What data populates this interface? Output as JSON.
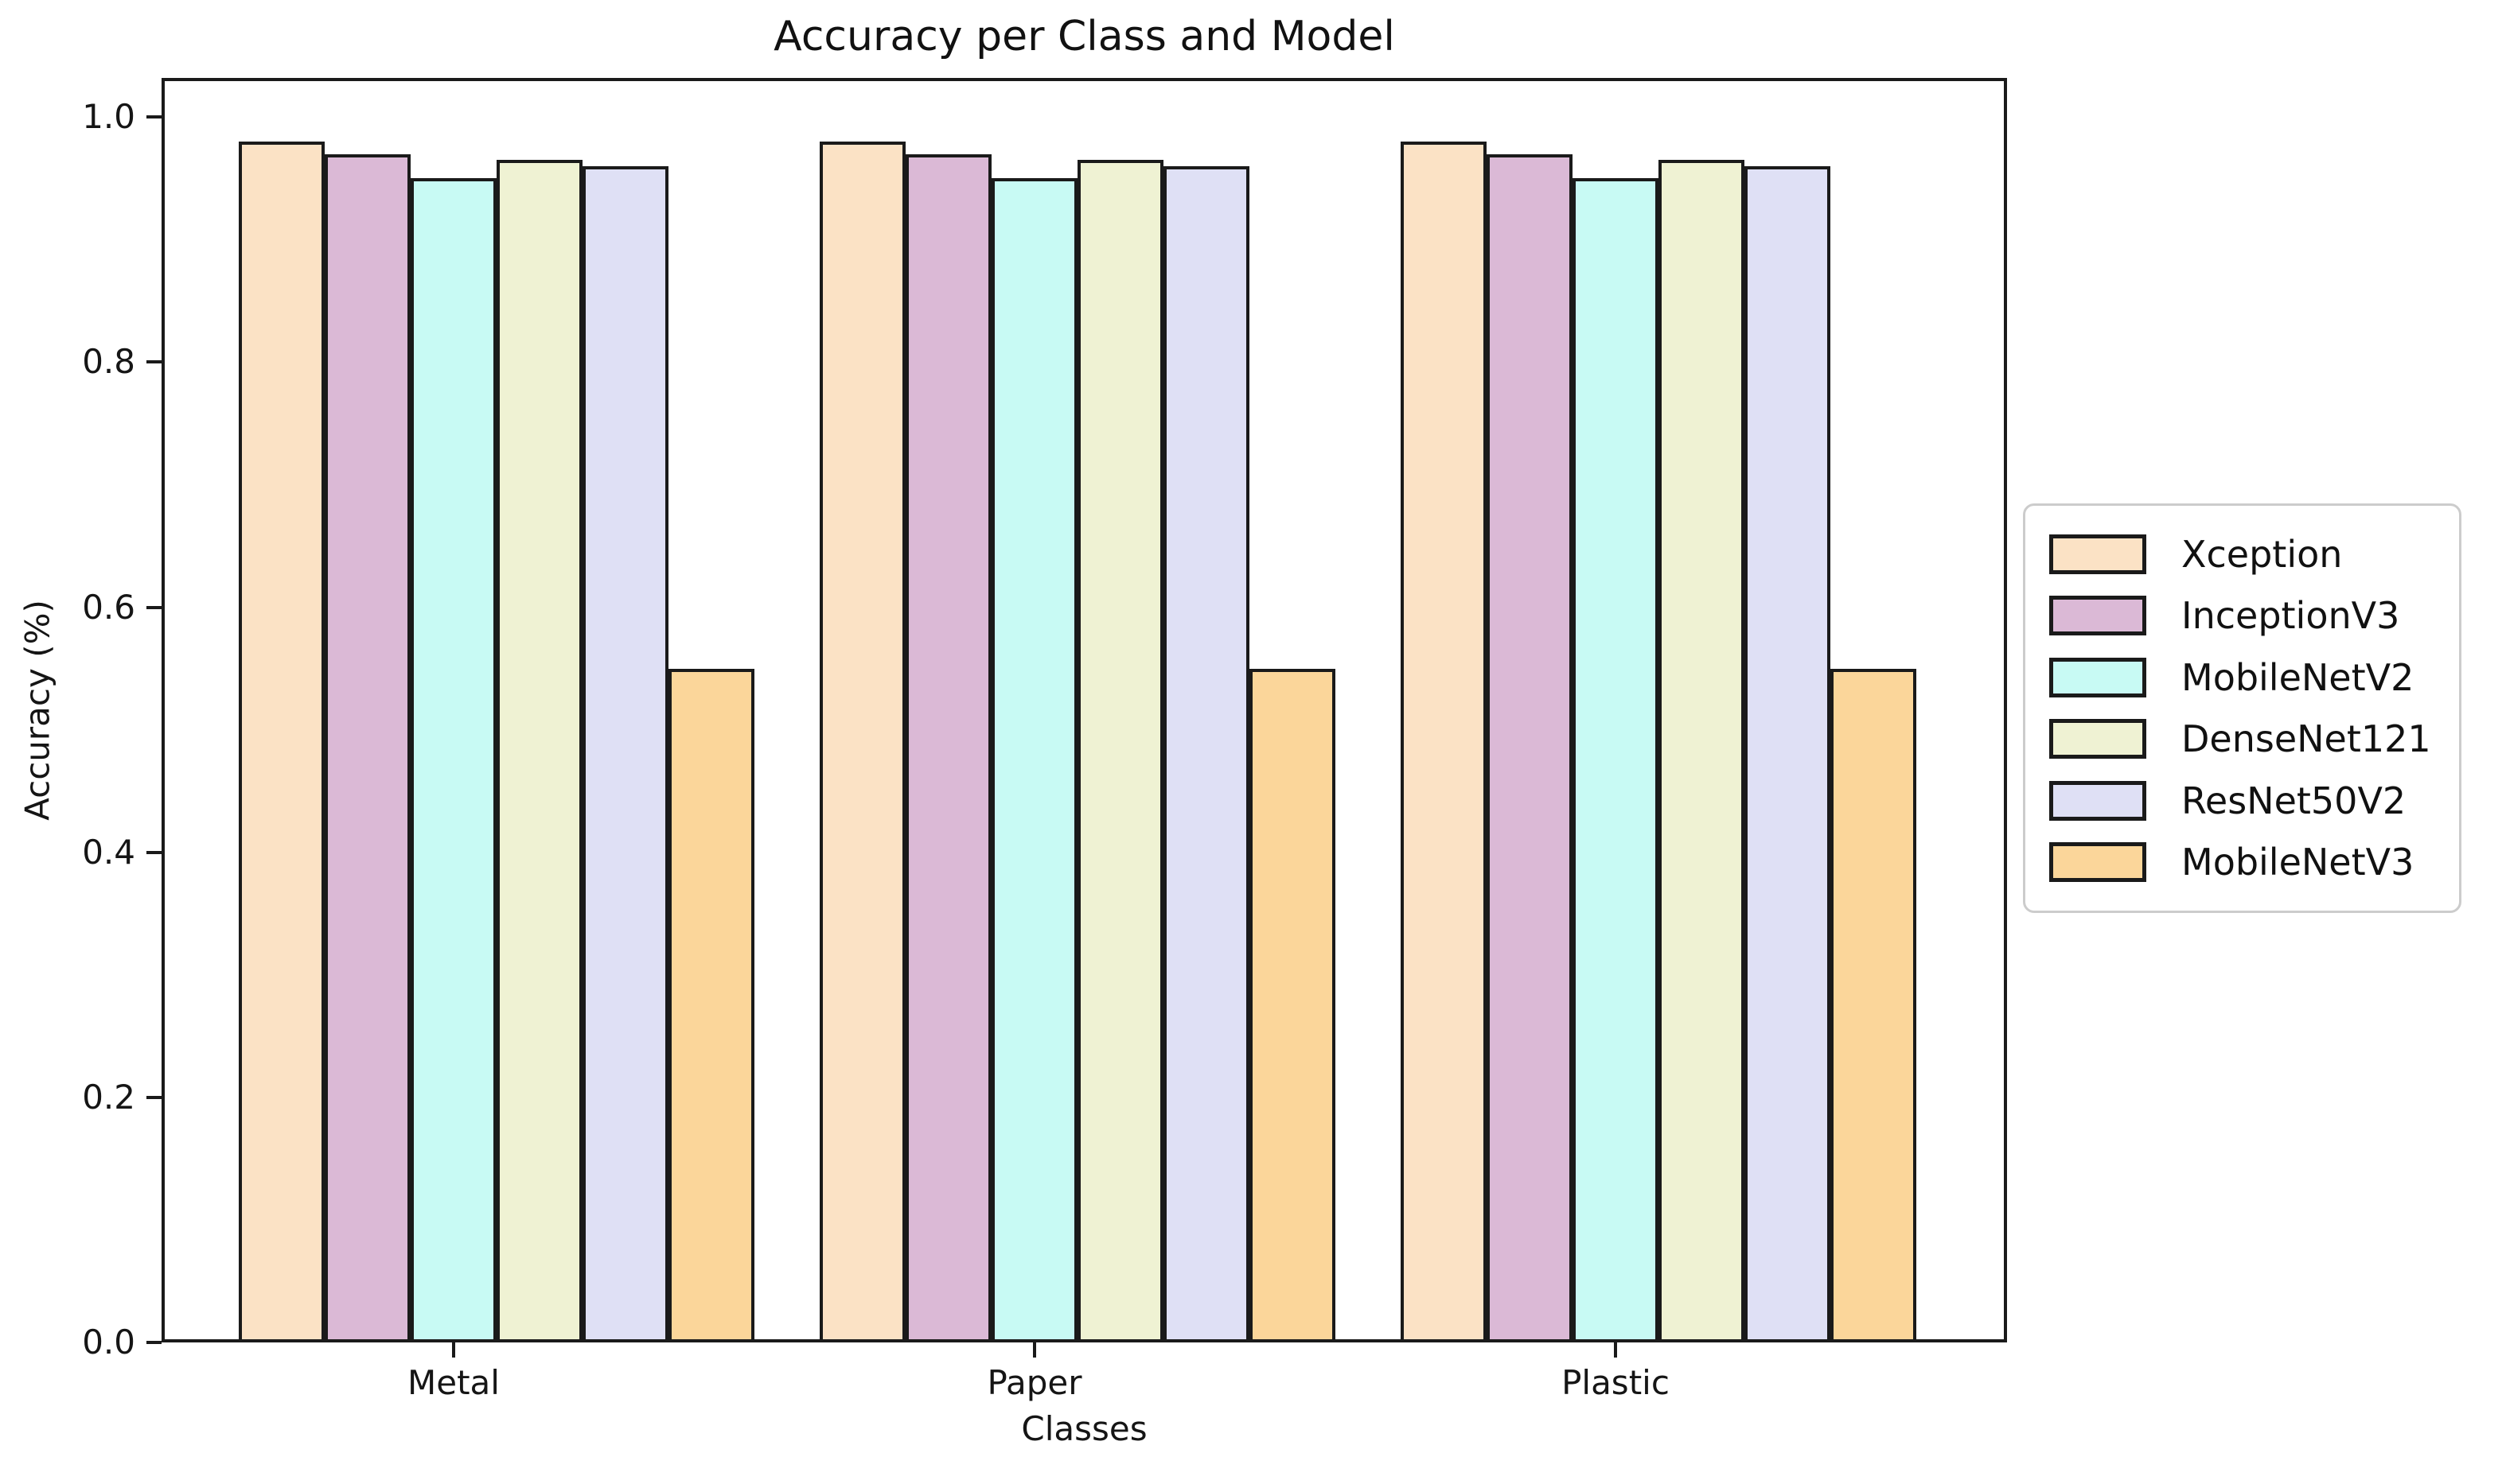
{
  "chart_data": {
    "type": "bar",
    "title": "Accuracy per Class and Model",
    "xlabel": "Classes",
    "ylabel": "Accuracy (%)",
    "categories": [
      "Metal",
      "Paper",
      "Plastic"
    ],
    "series": [
      {
        "name": "Xception",
        "color": "#FBE2C5",
        "values": [
          0.98,
          0.98,
          0.98
        ]
      },
      {
        "name": "InceptionV3",
        "color": "#DBB9D6",
        "values": [
          0.97,
          0.97,
          0.97
        ]
      },
      {
        "name": "MobileNetV2",
        "color": "#C8FAF4",
        "values": [
          0.95,
          0.95,
          0.95
        ]
      },
      {
        "name": "DenseNet121",
        "color": "#EFF2D3",
        "values": [
          0.965,
          0.965,
          0.965
        ]
      },
      {
        "name": "ResNet50V2",
        "color": "#DFE0F5",
        "values": [
          0.96,
          0.96,
          0.96
        ]
      },
      {
        "name": "MobileNetV3",
        "color": "#FBD69A",
        "values": [
          0.55,
          0.55,
          0.55
        ]
      }
    ],
    "y_ticks": [
      "0.0",
      "0.2",
      "0.4",
      "0.6",
      "0.8",
      "1.0"
    ],
    "ylim": [
      0,
      1.032
    ],
    "grid": false,
    "legend_position": "right",
    "bar_edge_color": "#1a1a1a"
  }
}
